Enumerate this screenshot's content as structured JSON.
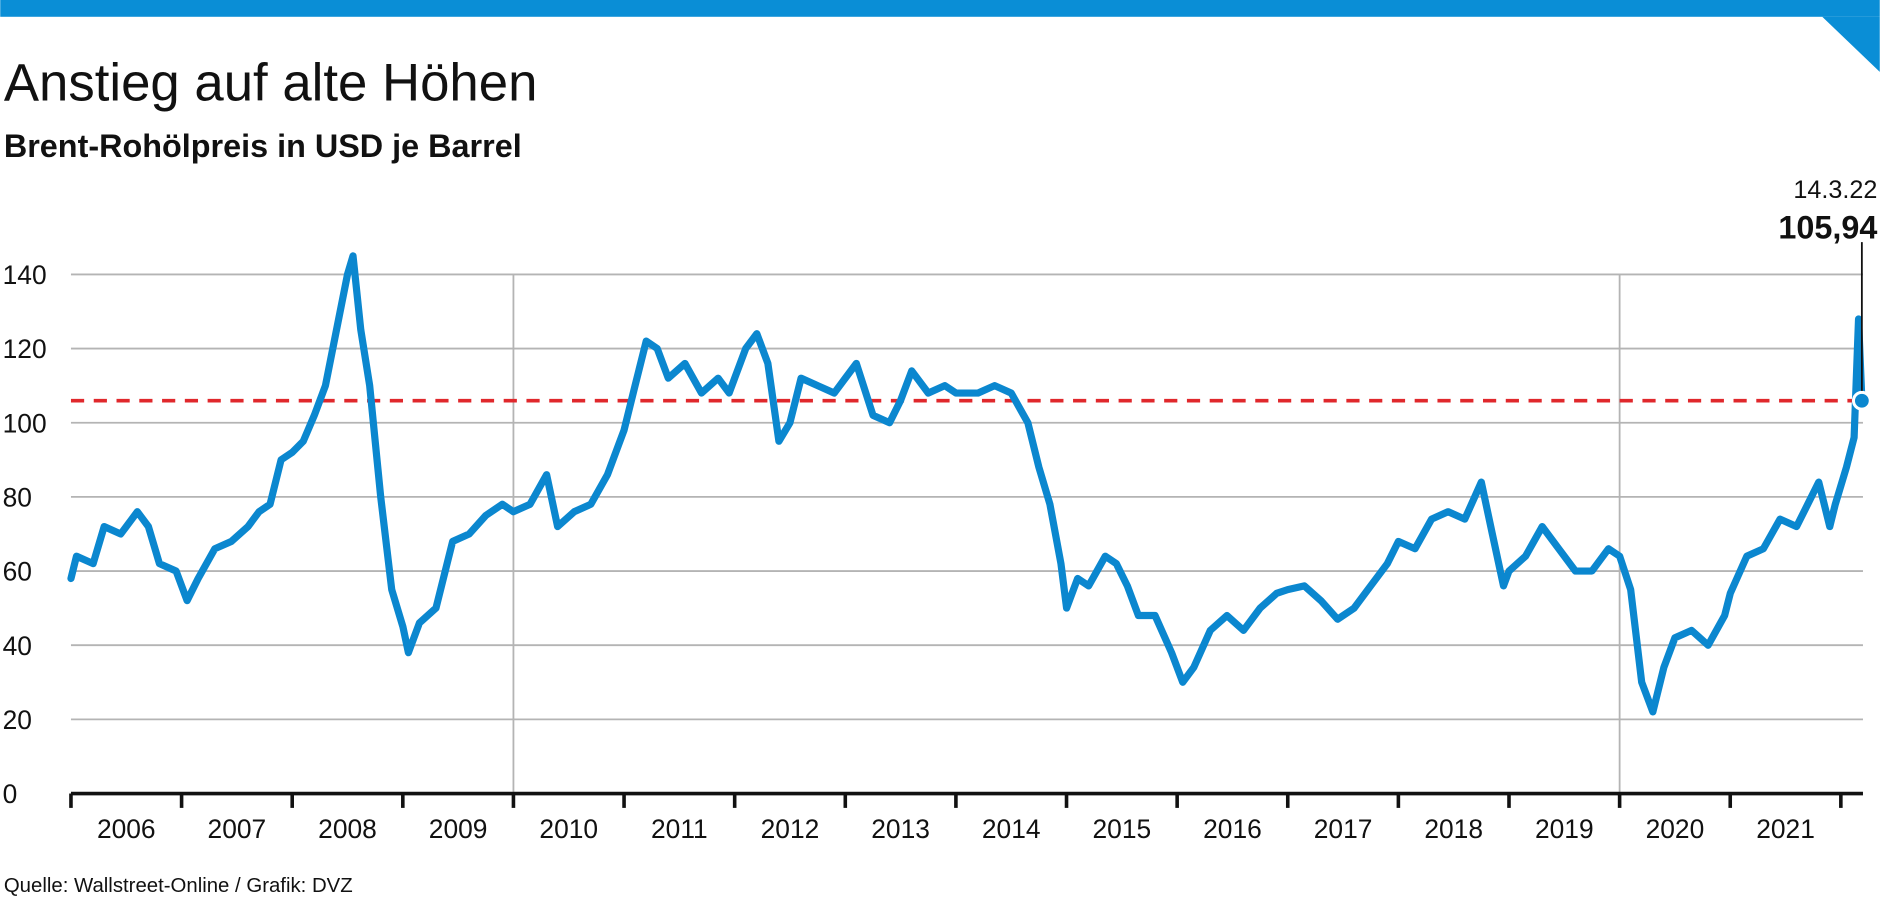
{
  "chart_data": {
    "type": "line",
    "title": "Anstieg auf alte Höhen",
    "subtitle": "Brent-Rohölpreis in USD je Barrel",
    "source": "Quelle: Wallstreet-Online / Grafik: DVZ",
    "xlim": [
      2006,
      2022.2
    ],
    "xticks": [
      2006,
      2007,
      2008,
      2009,
      2010,
      2011,
      2012,
      2013,
      2014,
      2015,
      2016,
      2017,
      2018,
      2019,
      2020,
      2021,
      2022
    ],
    "year_labels": [
      "2006",
      "2007",
      "2008",
      "2009",
      "2010",
      "2011",
      "2012",
      "2013",
      "2014",
      "2015",
      "2016",
      "2017",
      "2018",
      "2019",
      "2020",
      "2021"
    ],
    "xgrid": [
      2010,
      2020
    ],
    "ylim": [
      0,
      150
    ],
    "yticks": [
      0,
      20,
      40,
      60,
      80,
      100,
      120,
      140
    ],
    "grid": true,
    "series": [
      {
        "color": "#0b87cf",
        "x": [
          2006.0,
          2006.05,
          2006.2,
          2006.3,
          2006.45,
          2006.6,
          2006.7,
          2006.8,
          2006.95,
          2007.05,
          2007.15,
          2007.3,
          2007.45,
          2007.6,
          2007.7,
          2007.8,
          2007.9,
          2008.0,
          2008.1,
          2008.2,
          2008.3,
          2008.4,
          2008.5,
          2008.55,
          2008.62,
          2008.7,
          2008.8,
          2008.9,
          2009.0,
          2009.05,
          2009.15,
          2009.3,
          2009.45,
          2009.6,
          2009.75,
          2009.9,
          2010.0,
          2010.15,
          2010.3,
          2010.4,
          2010.55,
          2010.7,
          2010.85,
          2010.95,
          2011.0,
          2011.1,
          2011.2,
          2011.3,
          2011.4,
          2011.55,
          2011.7,
          2011.85,
          2011.95,
          2012.0,
          2012.1,
          2012.2,
          2012.3,
          2012.4,
          2012.5,
          2012.6,
          2012.75,
          2012.9,
          2013.0,
          2013.1,
          2013.25,
          2013.4,
          2013.5,
          2013.6,
          2013.75,
          2013.9,
          2014.0,
          2014.2,
          2014.35,
          2014.5,
          2014.65,
          2014.75,
          2014.85,
          2014.95,
          2015.0,
          2015.1,
          2015.2,
          2015.35,
          2015.45,
          2015.55,
          2015.65,
          2015.8,
          2015.95,
          2016.05,
          2016.15,
          2016.3,
          2016.45,
          2016.6,
          2016.75,
          2016.9,
          2017.0,
          2017.15,
          2017.3,
          2017.45,
          2017.6,
          2017.75,
          2017.9,
          2018.0,
          2018.15,
          2018.3,
          2018.45,
          2018.6,
          2018.75,
          2018.85,
          2018.95,
          2019.0,
          2019.15,
          2019.3,
          2019.45,
          2019.6,
          2019.75,
          2019.9,
          2020.0,
          2020.1,
          2020.2,
          2020.3,
          2020.4,
          2020.5,
          2020.65,
          2020.8,
          2020.95,
          2021.0,
          2021.15,
          2021.3,
          2021.45,
          2021.6,
          2021.7,
          2021.8,
          2021.9,
          2021.95,
          2022.05,
          2022.12,
          2022.16,
          2022.19
        ],
        "values": [
          58,
          64,
          62,
          72,
          70,
          76,
          72,
          62,
          60,
          52,
          58,
          66,
          68,
          72,
          76,
          78,
          90,
          92,
          95,
          102,
          110,
          125,
          140,
          145,
          125,
          110,
          80,
          55,
          45,
          38,
          46,
          50,
          68,
          70,
          75,
          78,
          76,
          78,
          86,
          72,
          76,
          78,
          86,
          94,
          98,
          110,
          122,
          120,
          112,
          116,
          108,
          112,
          108,
          112,
          120,
          124,
          116,
          95,
          100,
          112,
          110,
          108,
          112,
          116,
          102,
          100,
          106,
          114,
          108,
          110,
          108,
          108,
          110,
          108,
          100,
          88,
          78,
          62,
          50,
          58,
          56,
          64,
          62,
          56,
          48,
          48,
          38,
          30,
          34,
          44,
          48,
          44,
          50,
          54,
          55,
          56,
          52,
          47,
          50,
          56,
          62,
          68,
          66,
          74,
          76,
          74,
          84,
          70,
          56,
          60,
          64,
          72,
          66,
          60,
          60,
          66,
          64,
          55,
          30,
          22,
          34,
          42,
          44,
          40,
          48,
          54,
          64,
          66,
          74,
          72,
          78,
          84,
          72,
          78,
          88,
          96,
          128,
          105.94
        ]
      }
    ],
    "annotation": {
      "date": "14.3.22",
      "value": 105.94,
      "label": "105,94"
    }
  }
}
